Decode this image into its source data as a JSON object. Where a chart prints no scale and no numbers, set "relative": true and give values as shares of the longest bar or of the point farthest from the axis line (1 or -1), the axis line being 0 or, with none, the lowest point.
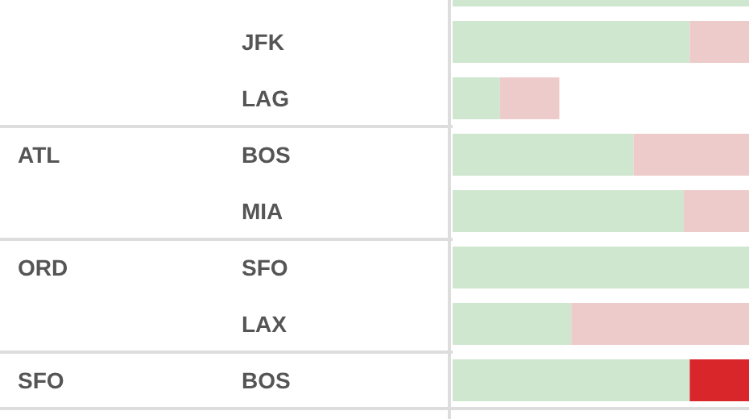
{
  "chart_data": {
    "type": "bar",
    "orientation": "horizontal",
    "stacked": true,
    "relative": true,
    "categories": [
      null,
      "JFK",
      "LAG",
      "BOS",
      "MIA",
      "SFO",
      "LAX",
      "BOS"
    ],
    "series": [
      {
        "color": "#cfe6cf",
        "values": [
          1,
          0.8,
          0.16,
          0.61,
          0.78,
          1,
          0.4,
          0.8
        ]
      },
      {
        "colors": [
          "#eecbcb",
          "#eecbcb",
          "#eecbcb",
          "#eecbcb",
          "#eecbcb",
          "#eecbcb",
          "#eecbcb",
          "#d9262b"
        ],
        "values": [
          0,
          0.2,
          0.2,
          0.39,
          0.22,
          0,
          0.6,
          0.2
        ]
      }
    ],
    "annotations": [
      "ATL",
      "ORD",
      "SFO"
    ]
  }
}
